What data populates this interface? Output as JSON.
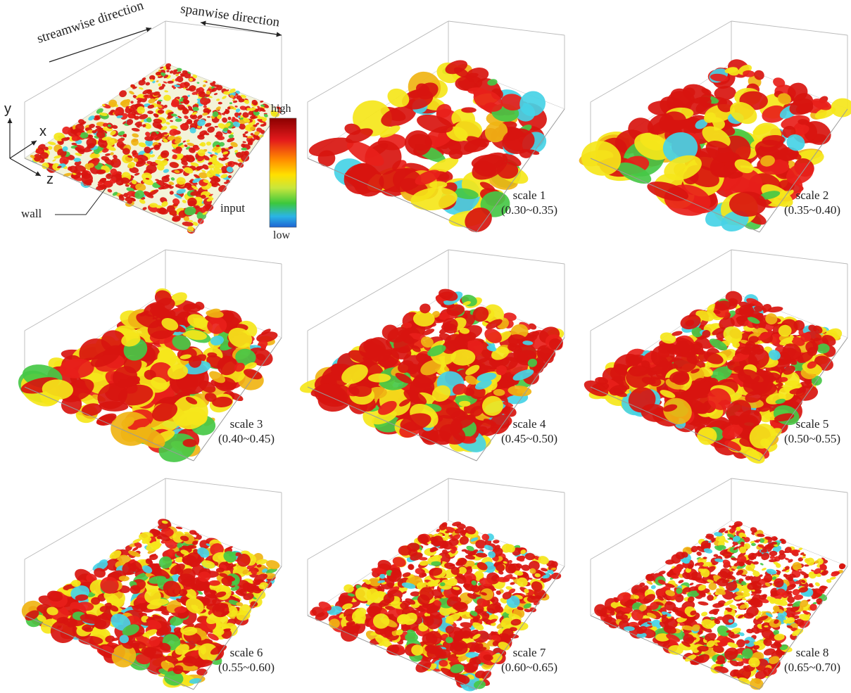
{
  "labels": {
    "streamwise": "streamwise direction",
    "spanwise": "spanwise direction",
    "axis_y": "y",
    "axis_x": "x",
    "axis_z": "z",
    "wall": "wall",
    "input": "input",
    "colorbar_high": "high",
    "colorbar_low": "low"
  },
  "colors": {
    "colorbar": [
      "#8b0000",
      "#e31a1c",
      "#ff8c00",
      "#ffe000",
      "#c8e63c",
      "#3cc83c",
      "#2ab4e6",
      "#1e64d2"
    ],
    "blob": [
      "#d8150f",
      "#e8201a",
      "#f5e61a",
      "#ffd21e",
      "#f0b414",
      "#46c846",
      "#46d2e6"
    ]
  },
  "panels": [
    {
      "id": "input",
      "density": 1.0
    },
    {
      "id": "scale-1",
      "title": "scale 1",
      "range": "(0.30~0.35)",
      "density": 0.1
    },
    {
      "id": "scale-2",
      "title": "scale 2",
      "range": "(0.35~0.40)",
      "density": 0.18
    },
    {
      "id": "scale-3",
      "title": "scale 3",
      "range": "(0.40~0.45)",
      "density": 0.28
    },
    {
      "id": "scale-4",
      "title": "scale 4",
      "range": "(0.45~0.50)",
      "density": 0.4
    },
    {
      "id": "scale-5",
      "title": "scale 5",
      "range": "(0.50~0.55)",
      "density": 0.55
    },
    {
      "id": "scale-6",
      "title": "scale 6",
      "range": "(0.55~0.60)",
      "density": 0.7
    },
    {
      "id": "scale-7",
      "title": "scale 7",
      "range": "(0.60~0.65)",
      "density": 0.82
    },
    {
      "id": "scale-8",
      "title": "scale 8",
      "range": "(0.65~0.70)",
      "density": 0.92
    }
  ]
}
